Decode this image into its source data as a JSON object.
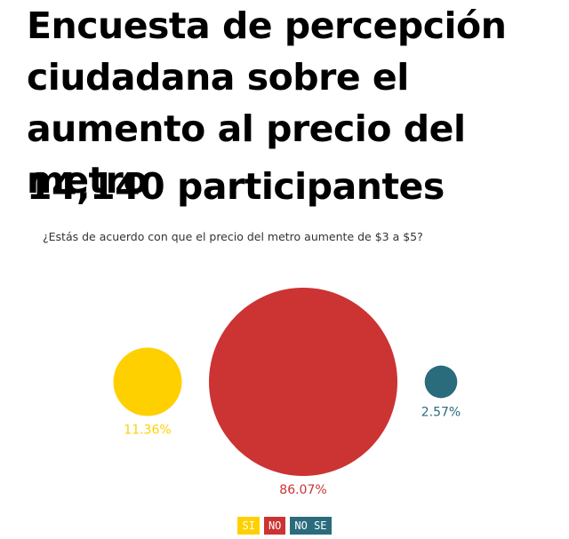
{
  "header": {
    "title": "Encuesta de percepción ciudadana sobre el aumento al precio del metro",
    "participants": "14,140 participantes",
    "question": "¿Estás de acuerdo con que el precio del metro aumente de $3 a $5?"
  },
  "chart_data": {
    "type": "bubble",
    "title": "",
    "categories": [
      "SI",
      "NO",
      "NO SE"
    ],
    "values": [
      11.36,
      86.07,
      2.57
    ],
    "labels": [
      "11.36%",
      "86.07%",
      "2.57%"
    ],
    "colors": [
      "#ffd000",
      "#cc3333",
      "#2a6b7c"
    ],
    "legend_position": "bottom-center"
  },
  "legend": {
    "items": [
      {
        "label": "SI",
        "color": "#ffd000"
      },
      {
        "label": "NO",
        "color": "#cc3333"
      },
      {
        "label": "NO SE",
        "color": "#2a6b7c"
      }
    ]
  }
}
